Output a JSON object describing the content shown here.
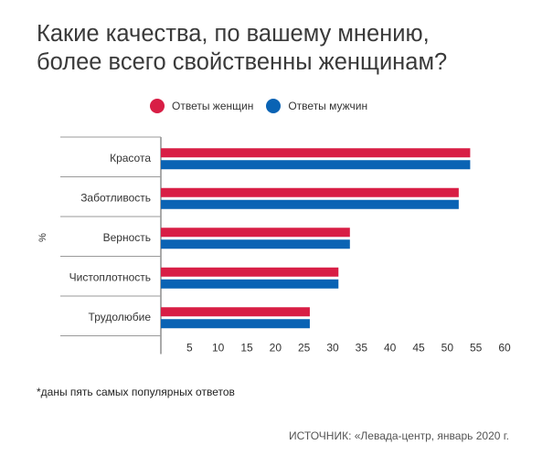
{
  "title_line1": "Какие качества, по вашему мнению,",
  "title_line2": "более всего свойственны женщинам?",
  "colors": {
    "women": "#d81e45",
    "men": "#0a63b4",
    "grid": "#9a9a9a",
    "axis": "#555555"
  },
  "footnote": "*даны пять самых популярных ответов",
  "source": "ИСТОЧНИК: «Левада-центр, январь 2020 г.",
  "chart_data": {
    "type": "bar",
    "orientation": "horizontal",
    "ylabel": "%",
    "categories": [
      "Красота",
      "Заботливость",
      "Верность",
      "Чистоплотность",
      "Трудолюбие"
    ],
    "series": [
      {
        "name": "Ответы женщин",
        "color": "#d81e45",
        "values": [
          54,
          52,
          33,
          31,
          26
        ]
      },
      {
        "name": "Ответы мужчин",
        "color": "#0a63b4",
        "values": [
          54,
          52,
          33,
          31,
          26
        ]
      }
    ],
    "xlim": [
      0,
      60
    ],
    "xticks": [
      5,
      10,
      15,
      20,
      25,
      30,
      35,
      40,
      45,
      50,
      55,
      60
    ],
    "grid": false,
    "legend_position": "top"
  }
}
